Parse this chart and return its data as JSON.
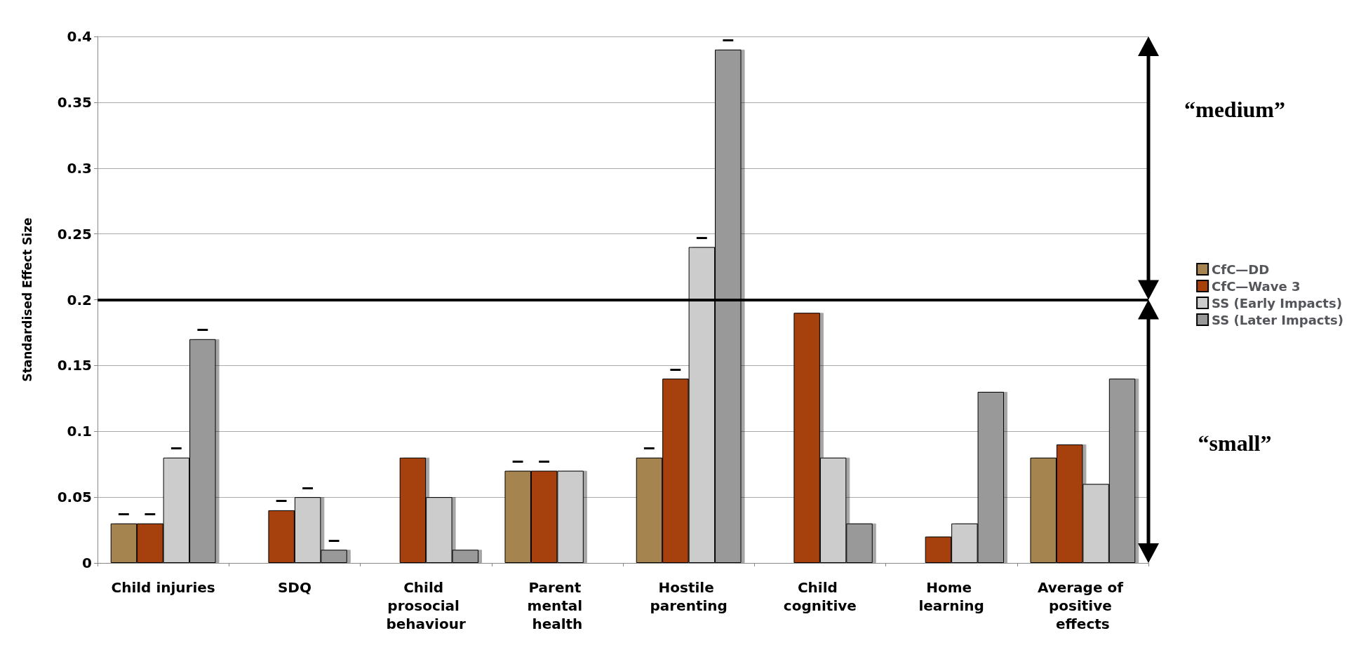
{
  "chart_data": {
    "type": "bar",
    "ylabel": "Standardised Effect Size",
    "categories": [
      "Child injuries",
      "SDQ",
      "Child prosocial behaviour",
      "Parent mental health",
      "Hostile parenting",
      "Child cognitive",
      "Home learning",
      "Average of positive effects"
    ],
    "series": [
      {
        "name": "CfC—DD",
        "color": "#a6844f",
        "values": [
          0.03,
          null,
          null,
          0.07,
          0.08,
          null,
          null,
          0.08
        ],
        "value_labels": [
          "–",
          null,
          null,
          "–",
          "–",
          null,
          null,
          null
        ]
      },
      {
        "name": "CfC—Wave 3",
        "color": "#a6410a",
        "values": [
          0.03,
          0.04,
          0.08,
          0.07,
          0.14,
          0.19,
          0.02,
          0.09
        ],
        "value_labels": [
          "–",
          "–",
          null,
          "–",
          "–",
          null,
          null,
          null
        ]
      },
      {
        "name": "SS (Early Impacts)",
        "color": "#cccccc",
        "values": [
          0.08,
          0.05,
          0.05,
          0.07,
          0.24,
          0.08,
          0.03,
          0.06
        ],
        "value_labels": [
          "–",
          "–",
          null,
          null,
          "–",
          null,
          null,
          null
        ]
      },
      {
        "name": "SS (Later Impacts)",
        "color": "#999999",
        "values": [
          0.17,
          0.01,
          0.01,
          null,
          0.39,
          0.03,
          0.13,
          0.14
        ],
        "value_labels": [
          "–",
          "–",
          null,
          null,
          "–",
          null,
          null,
          null
        ]
      }
    ],
    "ylim": [
      0,
      0.4
    ],
    "yticks": [
      0,
      0.05,
      0.1,
      0.15,
      0.2,
      0.25,
      0.3,
      0.35,
      0.4
    ],
    "grid": "y",
    "legend": "right",
    "ref_lines": [
      {
        "axis": "y",
        "value": 0.2,
        "color": "#000000"
      }
    ],
    "annotations": [
      "“medium”",
      "“small”"
    ]
  }
}
